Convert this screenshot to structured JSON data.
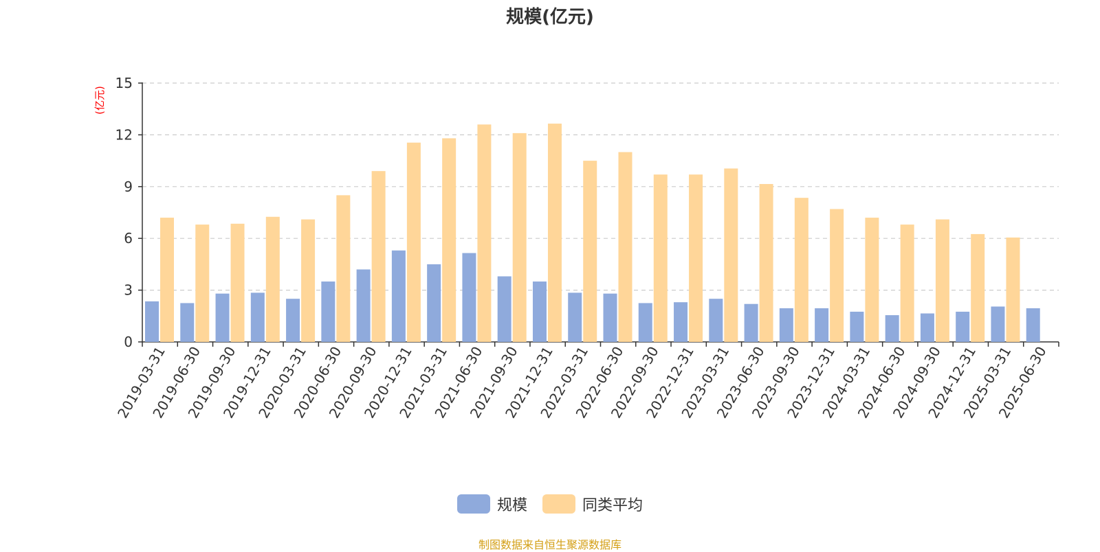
{
  "chart_data": {
    "type": "bar",
    "title": "规模(亿元)",
    "ylabel": "(亿元)",
    "xlabel": "",
    "ylim": [
      0,
      15
    ],
    "yticks": [
      0,
      3,
      6,
      9,
      12,
      15
    ],
    "grid": true,
    "legend_position": "bottom",
    "categories": [
      "2019-03-31",
      "2019-06-30",
      "2019-09-30",
      "2019-12-31",
      "2020-03-31",
      "2020-06-30",
      "2020-09-30",
      "2020-12-31",
      "2021-03-31",
      "2021-06-30",
      "2021-09-30",
      "2021-12-31",
      "2022-03-31",
      "2022-06-30",
      "2022-09-30",
      "2022-12-31",
      "2023-03-31",
      "2023-06-30",
      "2023-09-30",
      "2023-12-31",
      "2024-03-31",
      "2024-06-30",
      "2024-09-30",
      "2024-12-31",
      "2025-03-31",
      "2025-06-30"
    ],
    "series": [
      {
        "name": "规模",
        "color": "#8faadc",
        "values": [
          2.35,
          2.25,
          2.8,
          2.85,
          2.5,
          3.5,
          4.2,
          5.3,
          4.5,
          5.15,
          3.8,
          3.5,
          2.85,
          2.8,
          2.25,
          2.3,
          2.5,
          2.2,
          1.95,
          1.95,
          1.75,
          1.55,
          1.65,
          1.75,
          2.05,
          1.95
        ]
      },
      {
        "name": "同类平均",
        "color": "#ffd699",
        "values": [
          7.2,
          6.8,
          6.85,
          7.25,
          7.1,
          8.5,
          9.9,
          11.55,
          11.8,
          12.6,
          12.1,
          12.65,
          10.5,
          11.0,
          9.7,
          9.7,
          10.05,
          9.15,
          8.35,
          7.7,
          7.2,
          6.8,
          7.1,
          6.25,
          6.05,
          null
        ]
      }
    ]
  },
  "source_note": "制图数据来自恒生聚源数据库"
}
